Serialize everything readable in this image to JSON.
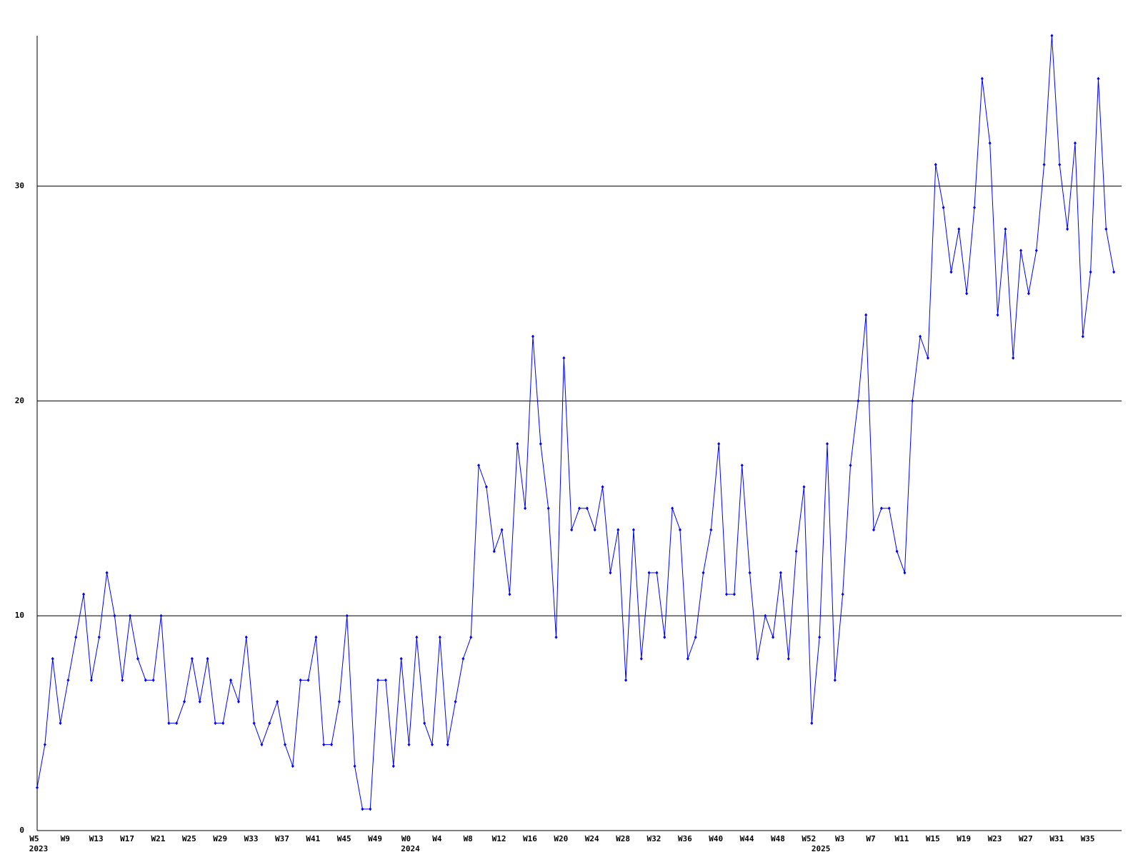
{
  "chart_data": {
    "type": "line",
    "categories": [
      "W5",
      null,
      null,
      null,
      "W9",
      null,
      null,
      null,
      "W13",
      null,
      null,
      null,
      "W17",
      null,
      null,
      null,
      "W21",
      null,
      null,
      null,
      "W25",
      null,
      null,
      null,
      "W29",
      null,
      null,
      null,
      "W33",
      null,
      null,
      null,
      "W37",
      null,
      null,
      null,
      "W41",
      null,
      null,
      null,
      "W45",
      null,
      null,
      null,
      "W49",
      null,
      null,
      null,
      "W0",
      null,
      null,
      null,
      "W4",
      null,
      null,
      null,
      "W8",
      null,
      null,
      null,
      "W12",
      null,
      null,
      null,
      "W16",
      null,
      null,
      null,
      "W20",
      null,
      null,
      null,
      "W24",
      null,
      null,
      null,
      "W28",
      null,
      null,
      null,
      "W32",
      null,
      null,
      null,
      "W36",
      null,
      null,
      null,
      "W40",
      null,
      null,
      null,
      "W44",
      null,
      null,
      null,
      "W48",
      null,
      null,
      null,
      "W52",
      null,
      null,
      null,
      "W3",
      null,
      null,
      null,
      "W7",
      null,
      null,
      null,
      "W11",
      null,
      null,
      null,
      "W15",
      null,
      null,
      null,
      "W19",
      null,
      null,
      null,
      "W23",
      null,
      null,
      null,
      "W27",
      null,
      null,
      null,
      "W31",
      null,
      null,
      null,
      "W35",
      null,
      null,
      null
    ],
    "groups": [
      {
        "value": 0,
        "label": "2023"
      },
      {
        "value": 48,
        "label": "2024"
      },
      {
        "value": 101,
        "label": "2025"
      }
    ],
    "series": [
      {
        "color": "#0000ff",
        "values": [
          2,
          4,
          8,
          5,
          7,
          9,
          11,
          7,
          9,
          12,
          10,
          7,
          10,
          8,
          7,
          7,
          10,
          5,
          5,
          6,
          8,
          6,
          8,
          5,
          5,
          7,
          6,
          9,
          5,
          4,
          5,
          6,
          4,
          3,
          7,
          7,
          9,
          4,
          4,
          6,
          10,
          3,
          1,
          1,
          7,
          7,
          3,
          8,
          4,
          9,
          5,
          4,
          9,
          4,
          6,
          8,
          9,
          17,
          16,
          13,
          14,
          11,
          18,
          15,
          23,
          18,
          15,
          9,
          22,
          14,
          15,
          15,
          14,
          16,
          12,
          14,
          7,
          14,
          8,
          12,
          12,
          9,
          15,
          14,
          8,
          9,
          12,
          14,
          18,
          11,
          11,
          17,
          12,
          8,
          10,
          9,
          12,
          8,
          13,
          16,
          5,
          9,
          18,
          7,
          11,
          17,
          20,
          24,
          14,
          15,
          15,
          13,
          12,
          20,
          23,
          22,
          31,
          29,
          26,
          28,
          25,
          29,
          35,
          32,
          24,
          28,
          22,
          27,
          25,
          27,
          31,
          37,
          31,
          28,
          32,
          23,
          26,
          35,
          28,
          26
        ]
      }
    ],
    "ylim": [
      0,
      37
    ],
    "yticks": [
      0,
      10,
      20,
      30
    ],
    "grid": true
  }
}
